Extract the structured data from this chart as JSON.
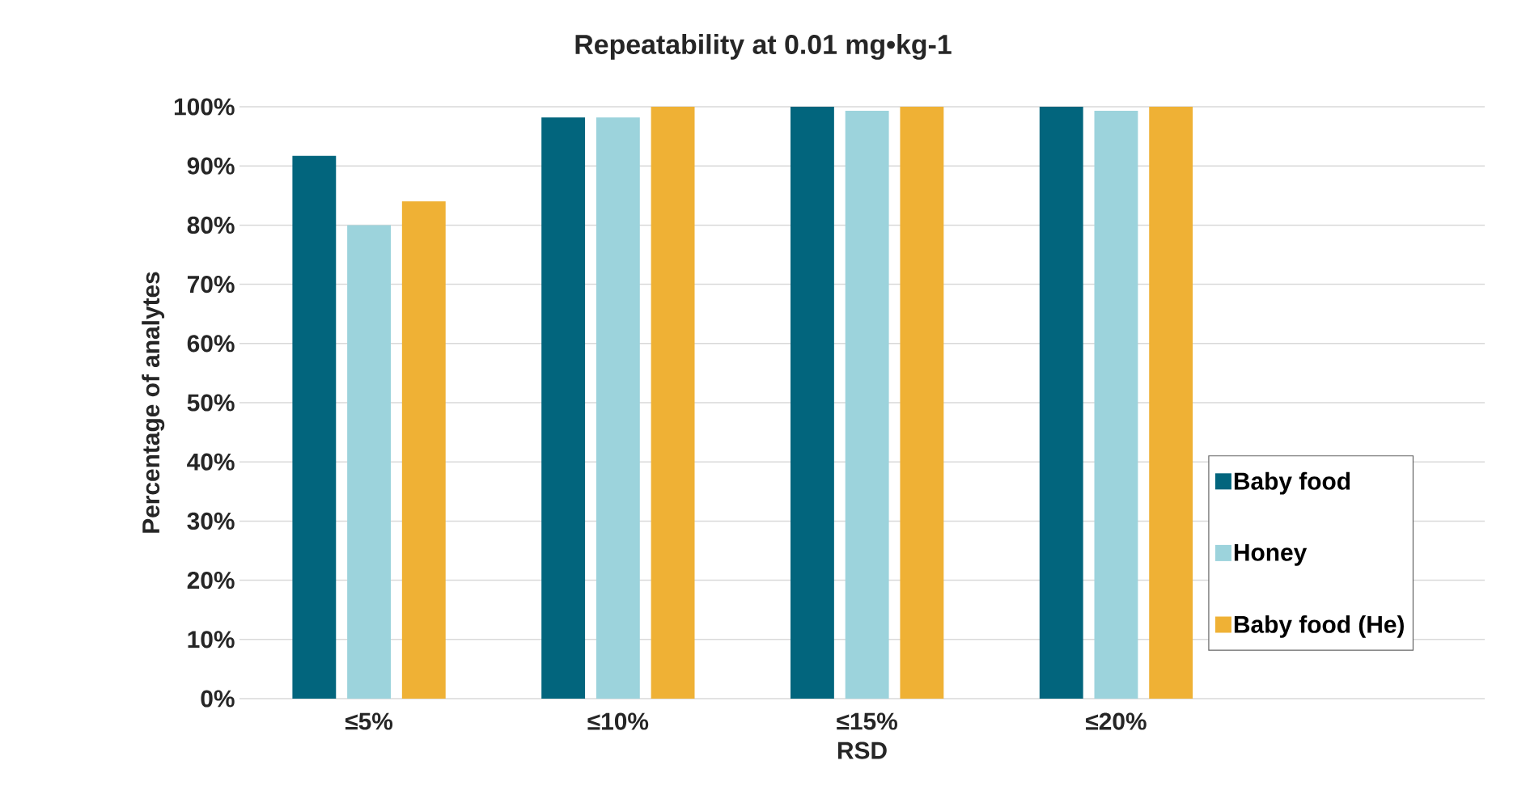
{
  "chart_data": {
    "type": "bar",
    "title": "Repeatability at 0.01 mg•kg-1",
    "xlabel": "RSD",
    "ylabel": "Percentage of analytes",
    "categories": [
      "≤5%",
      "≤10%",
      "≤15%",
      "≤20%"
    ],
    "series": [
      {
        "name": "Baby food",
        "color": "#02657d",
        "values": [
          91.7,
          98.2,
          100,
          100
        ]
      },
      {
        "name": "Honey",
        "color": "#9cd3dc",
        "values": [
          80,
          98.2,
          99.3,
          99.3
        ]
      },
      {
        "name": "Baby food (He)",
        "color": "#efb135",
        "values": [
          84,
          100,
          100,
          100
        ]
      }
    ],
    "ylim": [
      0,
      100
    ],
    "yticks": [
      {
        "value": 0,
        "label": "0%"
      },
      {
        "value": 10,
        "label": "10%"
      },
      {
        "value": 20,
        "label": "20%"
      },
      {
        "value": 30,
        "label": "30%"
      },
      {
        "value": 40,
        "label": "40%"
      },
      {
        "value": 50,
        "label": "50%"
      },
      {
        "value": 60,
        "label": "60%"
      },
      {
        "value": 70,
        "label": "70%"
      },
      {
        "value": 80,
        "label": "80%"
      },
      {
        "value": 90,
        "label": "90%"
      },
      {
        "value": 100,
        "label": "100%"
      }
    ],
    "grid": "y",
    "legend": "right"
  }
}
